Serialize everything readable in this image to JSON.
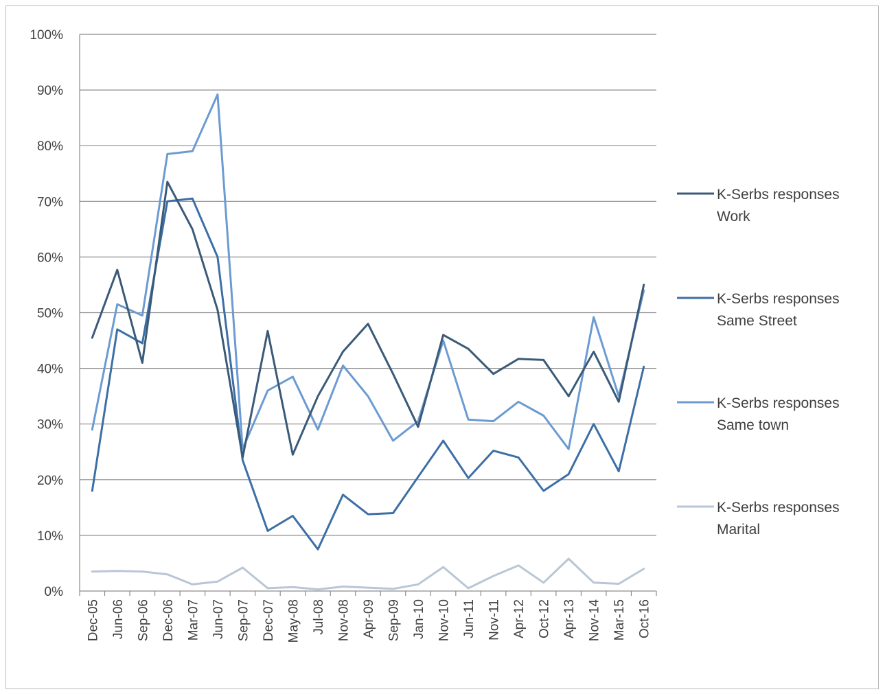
{
  "chart_data": {
    "type": "line",
    "title": "",
    "xlabel": "",
    "ylabel": "",
    "ylim": [
      0,
      1
    ],
    "y_ticks": [
      "0%",
      "10%",
      "20%",
      "30%",
      "40%",
      "50%",
      "60%",
      "70%",
      "80%",
      "90%",
      "100%"
    ],
    "grid": "horizontal",
    "legend_position": "right",
    "categories": [
      "Dec-05",
      "Jun-06",
      "Sep-06",
      "Dec-06",
      "Mar-07",
      "Jun-07",
      "Sep-07",
      "Dec-07",
      "May-08",
      "Jul-08",
      "Nov-08",
      "Apr-09",
      "Sep-09",
      "Jan-10",
      "Nov-10",
      "Jun-11",
      "Nov-11",
      "Apr-12",
      "Oct-12",
      "Apr-13",
      "Nov-14",
      "Mar-15",
      "Oct-16"
    ],
    "series": [
      {
        "name_lines": [
          "K-Serbs responses",
          "Work"
        ],
        "color": "#3a5a78",
        "values": [
          0.455,
          0.577,
          0.41,
          0.735,
          0.65,
          0.505,
          0.24,
          0.467,
          0.245,
          0.35,
          0.43,
          0.48,
          0.39,
          0.295,
          0.46,
          0.435,
          0.39,
          0.417,
          0.415,
          0.35,
          0.43,
          0.34,
          0.55
        ]
      },
      {
        "name_lines": [
          "K-Serbs responses",
          "Same Street"
        ],
        "color": "#3c6fa6",
        "values": [
          0.18,
          0.47,
          0.445,
          0.7,
          0.705,
          0.6,
          0.235,
          0.108,
          0.135,
          0.075,
          0.173,
          0.138,
          0.14,
          0.205,
          0.27,
          0.203,
          0.252,
          0.24,
          0.18,
          0.21,
          0.3,
          0.215,
          0.403
        ]
      },
      {
        "name_lines": [
          "K-Serbs responses",
          "Same town"
        ],
        "color": "#6b9bd2",
        "values": [
          0.29,
          0.515,
          0.495,
          0.785,
          0.79,
          0.892,
          0.255,
          0.36,
          0.385,
          0.29,
          0.405,
          0.35,
          0.27,
          0.305,
          0.45,
          0.308,
          0.305,
          0.34,
          0.315,
          0.255,
          0.492,
          0.35,
          0.54
        ]
      },
      {
        "name_lines": [
          "K-Serbs responses",
          "Marital"
        ],
        "color": "#b9c6d6",
        "values": [
          0.035,
          0.036,
          0.035,
          0.03,
          0.012,
          0.017,
          0.042,
          0.005,
          0.007,
          0.003,
          0.008,
          0.006,
          0.004,
          0.012,
          0.043,
          0.005,
          0.027,
          0.046,
          0.015,
          0.058,
          0.015,
          0.013,
          0.04
        ]
      }
    ]
  }
}
